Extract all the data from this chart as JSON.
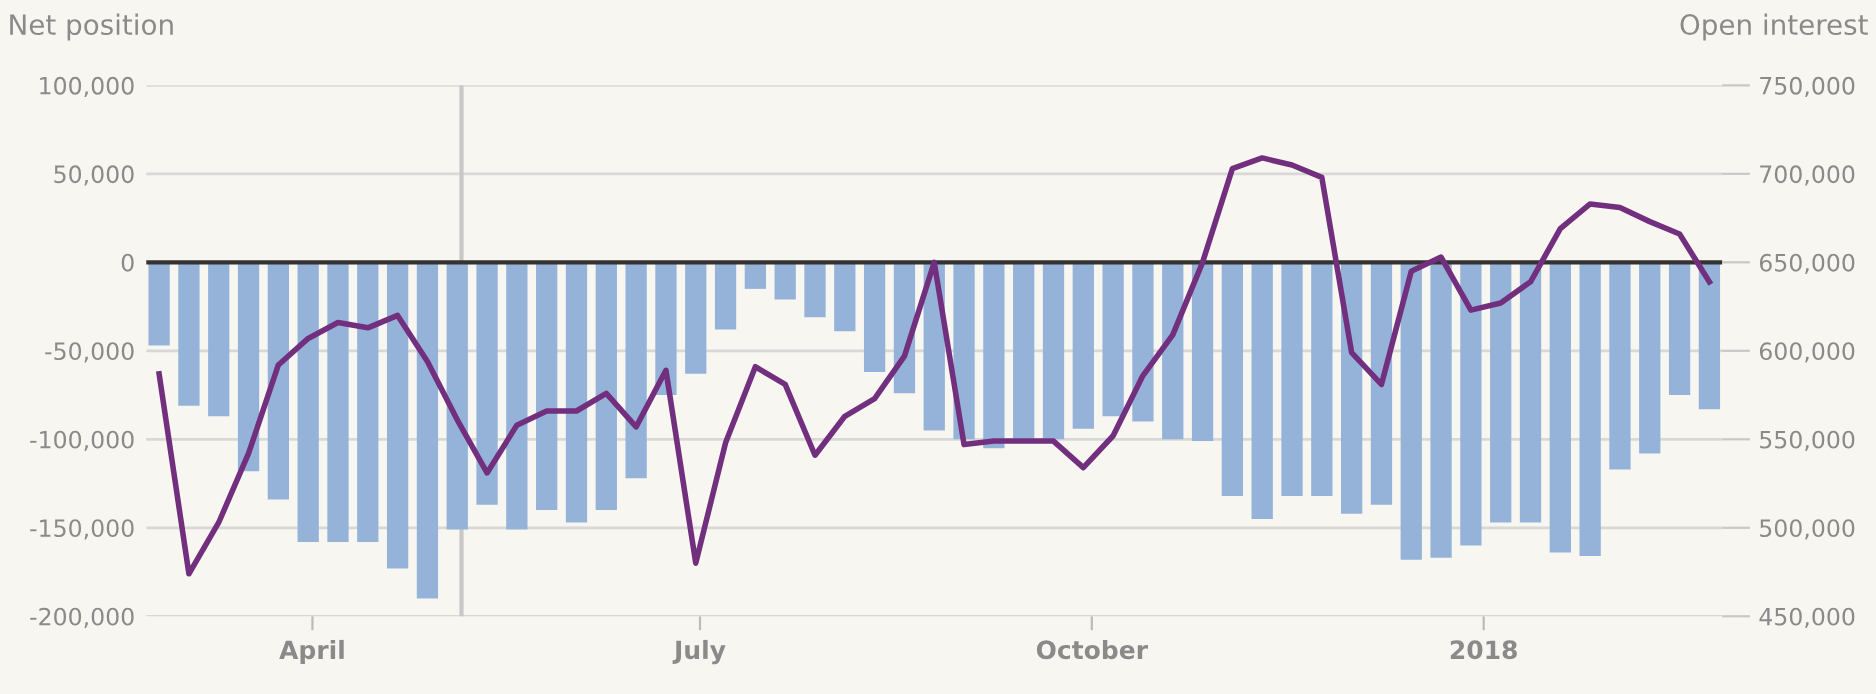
{
  "chart_data": {
    "type": "bar",
    "ylabel": "Net position",
    "y2label": "Open interest",
    "x": [
      "2017-02-24",
      "2017-03-03",
      "2017-03-10",
      "2017-03-17",
      "2017-03-24",
      "2017-03-31",
      "2017-04-07",
      "2017-04-14",
      "2017-04-21",
      "2017-04-28",
      "2017-05-05",
      "2017-05-12",
      "2017-05-19",
      "2017-05-26",
      "2017-06-02",
      "2017-06-09",
      "2017-06-16",
      "2017-06-23",
      "2017-06-30",
      "2017-07-07",
      "2017-07-14",
      "2017-07-21",
      "2017-07-28",
      "2017-08-04",
      "2017-08-11",
      "2017-08-18",
      "2017-08-25",
      "2017-09-01",
      "2017-09-08",
      "2017-09-15",
      "2017-09-22",
      "2017-09-29",
      "2017-10-06",
      "2017-10-13",
      "2017-10-20",
      "2017-10-27",
      "2017-11-03",
      "2017-11-10",
      "2017-11-17",
      "2017-11-24",
      "2017-12-01",
      "2017-12-08",
      "2017-12-15",
      "2017-12-22",
      "2017-12-29",
      "2018-01-05",
      "2018-01-12",
      "2018-01-19",
      "2018-01-26",
      "2018-02-02",
      "2018-02-09",
      "2018-02-16",
      "2018-02-23"
    ],
    "series": [
      {
        "axis": "y",
        "color": "#95b3d9",
        "values": [
          -47000,
          -81000,
          -87000,
          -118000,
          -134000,
          -158000,
          -158000,
          -158000,
          -173000,
          -190000,
          -151000,
          -137000,
          -151000,
          -140000,
          -147000,
          -140000,
          -122000,
          -75000,
          -63000,
          -38000,
          -15000,
          -21000,
          -31000,
          -39000,
          -62000,
          -74000,
          -95000,
          -100000,
          -105000,
          -100000,
          -100000,
          -94000,
          -87000,
          -90000,
          -100000,
          -101000,
          -132000,
          -145000,
          -132000,
          -132000,
          -142000,
          -137000,
          -168000,
          -167000,
          -160000,
          -147000,
          -147000,
          -164000,
          -166000,
          -117000,
          -108000,
          -75000,
          -83000
        ]
      },
      {
        "type": "line",
        "axis": "y2",
        "color": "#722f7e",
        "values": [
          587000,
          474000,
          503000,
          542000,
          592000,
          607000,
          616000,
          613000,
          620000,
          594000,
          561000,
          531000,
          558000,
          566000,
          566000,
          576000,
          557000,
          589000,
          480000,
          548000,
          591000,
          581000,
          541000,
          563000,
          573000,
          597000,
          650000,
          547000,
          549000,
          549000,
          549000,
          534000,
          552000,
          586000,
          609000,
          650000,
          703000,
          709000,
          705000,
          698000,
          599000,
          581000,
          645000,
          653000,
          623000,
          627000,
          639000,
          669000,
          683000,
          681000,
          673000,
          666000,
          639000
        ]
      }
    ],
    "xlim": [
      "2017-02-21",
      "2018-02-26"
    ],
    "xticks": [
      {
        "value": "2017-04-01",
        "label": "April"
      },
      {
        "value": "2017-07-01",
        "label": "July"
      },
      {
        "value": "2017-10-01",
        "label": "October"
      },
      {
        "value": "2018-01-01",
        "label": "2018"
      }
    ],
    "ylim": [
      -200000,
      100000
    ],
    "yticks": [
      {
        "value": -200000,
        "label": "-200,000"
      },
      {
        "value": -150000,
        "label": "-150,000"
      },
      {
        "value": -100000,
        "label": "-100,000"
      },
      {
        "value": -50000,
        "label": "-50,000"
      },
      {
        "value": 0,
        "label": "0"
      },
      {
        "value": 50000,
        "label": "50,000"
      },
      {
        "value": 100000,
        "label": "100,000"
      }
    ],
    "y2lim": [
      450000,
      750000
    ],
    "y2ticks": [
      {
        "value": 450000,
        "label": "450,000"
      },
      {
        "value": 500000,
        "label": "500,000"
      },
      {
        "value": 550000,
        "label": "550,000"
      },
      {
        "value": 600000,
        "label": "600,000"
      },
      {
        "value": 650000,
        "label": "650,000"
      },
      {
        "value": 700000,
        "label": "700,000"
      },
      {
        "value": 750000,
        "label": "750,000"
      }
    ],
    "ref_lines": [
      {
        "axis": "y",
        "value": 0,
        "color": "#333333"
      },
      {
        "axis": "x",
        "value": "2017-05-06",
        "color": "#c8c8c8"
      }
    ],
    "grid": "y",
    "legend": false,
    "marker": "none",
    "line_style": "solid"
  }
}
